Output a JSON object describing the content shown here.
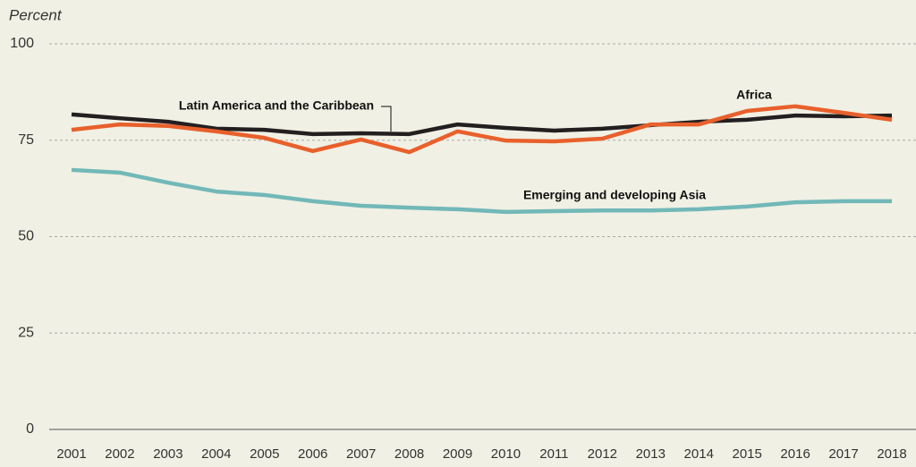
{
  "chart_data": {
    "type": "line",
    "y_label": "Percent",
    "categories": [
      "2001",
      "2002",
      "2003",
      "2004",
      "2005",
      "2006",
      "2007",
      "2008",
      "2009",
      "2010",
      "2011",
      "2012",
      "2013",
      "2014",
      "2015",
      "2016",
      "2017",
      "2018"
    ],
    "series": [
      {
        "name": "Latin America and the Caribbean",
        "color": "#231f20",
        "values": [
          81.7,
          80.7,
          79.8,
          78,
          77.7,
          76.6,
          76.8,
          76.6,
          79.1,
          78.2,
          77.5,
          78,
          78.9,
          79.8,
          80.3,
          81.4,
          81.2,
          81.4
        ]
      },
      {
        "name": "Africa",
        "color": "#e8602c",
        "values": [
          77.7,
          79.1,
          78.7,
          77.3,
          75.6,
          72.2,
          75.2,
          71.9,
          77.3,
          74.9,
          74.7,
          75.4,
          79.1,
          79.1,
          82.6,
          83.8,
          82.1,
          80.3
        ]
      },
      {
        "name": "Emerging and developing Asia",
        "color": "#72b8b8",
        "values": [
          67.3,
          66.6,
          64,
          61.7,
          60.8,
          59.2,
          58,
          57.5,
          57.1,
          56.4,
          56.6,
          56.8,
          56.8,
          57.1,
          57.8,
          58.9,
          59.2,
          59.2
        ]
      }
    ],
    "ylim": [
      0,
      100
    ],
    "yticks": [
      0,
      25,
      50,
      75,
      100
    ],
    "grid": true
  }
}
